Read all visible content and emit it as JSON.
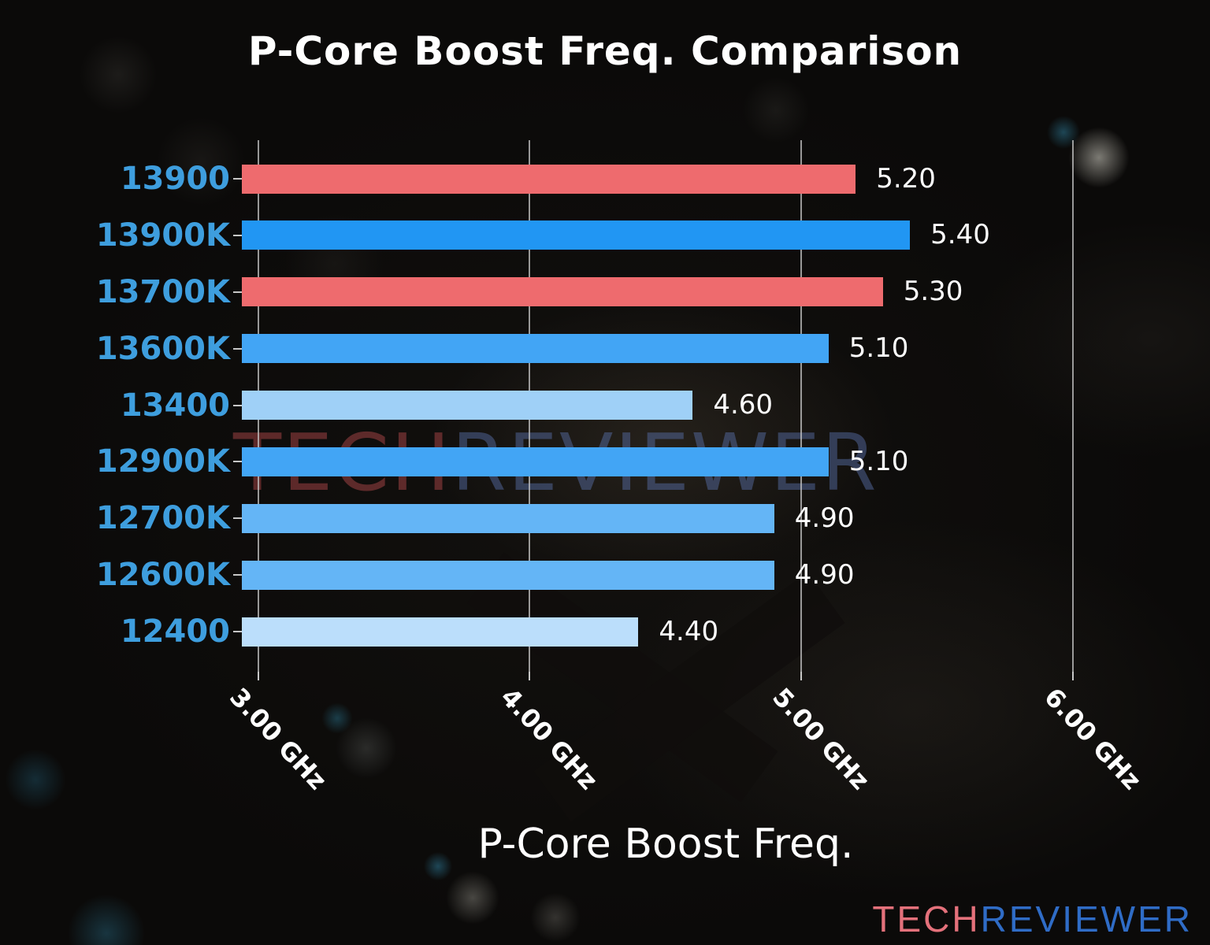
{
  "title": "P-Core Boost Freq. Comparison",
  "watermark": {
    "tech": "TECH",
    "reviewer": "REVIEWER"
  },
  "logo": {
    "tech": "TECH",
    "reviewer": "REVIEWER"
  },
  "chart_data": {
    "type": "bar",
    "orientation": "horizontal",
    "title": "P-Core Boost Freq. Comparison",
    "xlabel": "P-Core Boost Freq.",
    "categories": [
      "13900",
      "13900K",
      "13700K",
      "13600K",
      "13400",
      "12900K",
      "12700K",
      "12600K",
      "12400"
    ],
    "values": [
      5.2,
      5.4,
      5.3,
      5.1,
      4.6,
      5.1,
      4.9,
      4.9,
      4.4
    ],
    "value_labels": [
      "5.20",
      "5.40",
      "5.30",
      "5.10",
      "4.60",
      "5.10",
      "4.90",
      "4.90",
      "4.40"
    ],
    "bar_colors": [
      "#ee6b6e",
      "#2196f3",
      "#ee6b6e",
      "#42a5f5",
      "#9fd0f7",
      "#42a5f5",
      "#64b5f6",
      "#64b5f6",
      "#bbdefb"
    ],
    "x_tick_values": [
      3,
      4,
      5,
      6
    ],
    "x_tick_labels": [
      "3.00 GHz",
      "4.00 GHz",
      "5.00 GHz",
      "6.00 GHz"
    ],
    "xlim": [
      2.94,
      6.2
    ],
    "grid": true,
    "legend": "none",
    "unit": "GHz",
    "colors": {
      "category_label": "#3e9ede",
      "value_label": "#ffffff",
      "grid_line": "#c8c8c8",
      "highlight_red": "#ee6b6e",
      "logo_red": "#e4717b",
      "logo_blue": "#2f6cc6"
    }
  }
}
